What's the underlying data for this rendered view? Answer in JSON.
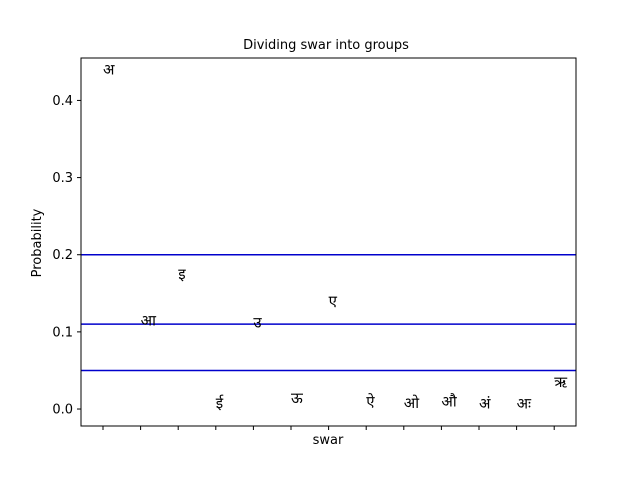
{
  "chart_data": {
    "type": "scatter",
    "title": "Dividing swar into groups",
    "xlabel": "swar",
    "ylabel": "Probability",
    "ylim": [
      -0.022,
      0.455
    ],
    "yticks": [
      "0.0",
      "0.1",
      "0.2",
      "0.3",
      "0.4"
    ],
    "ytick_values": [
      0.0,
      0.1,
      0.2,
      0.3,
      0.4
    ],
    "grid": false,
    "points": [
      {
        "label": "अ",
        "x": 0,
        "y": 0.44
      },
      {
        "label": "आ",
        "x": 1,
        "y": 0.115
      },
      {
        "label": "इ",
        "x": 2,
        "y": 0.175
      },
      {
        "label": "ई",
        "x": 3,
        "y": 0.008
      },
      {
        "label": "उ",
        "x": 4,
        "y": 0.112
      },
      {
        "label": "ऊ",
        "x": 5,
        "y": 0.014
      },
      {
        "label": "ए",
        "x": 6,
        "y": 0.14
      },
      {
        "label": "ऐ",
        "x": 7,
        "y": 0.01
      },
      {
        "label": "ओ",
        "x": 8,
        "y": 0.008
      },
      {
        "label": "औ",
        "x": 9,
        "y": 0.01
      },
      {
        "label": "अं",
        "x": 10,
        "y": 0.007
      },
      {
        "label": "अः",
        "x": 11,
        "y": 0.007
      },
      {
        "label": "ऋ",
        "x": 12,
        "y": 0.035
      }
    ],
    "hlines": [
      0.2,
      0.11,
      0.05
    ],
    "hline_color": "#0000cc"
  }
}
